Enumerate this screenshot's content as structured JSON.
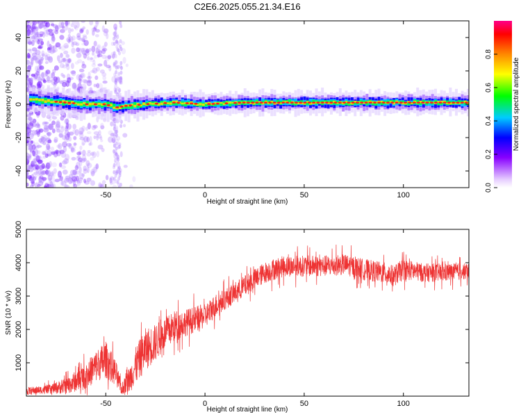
{
  "figure_title": "C2E6.2025.055.21.34.E16",
  "chart_data": [
    {
      "type": "heatmap",
      "title": "C2E6.2025.055.21.34.E16",
      "xlabel": "Height of straight line (km)",
      "ylabel": "Frequency (Hz)",
      "xlim": [
        -90,
        133
      ],
      "ylim": [
        -50,
        50
      ],
      "xticks": [
        -50,
        0,
        50,
        100
      ],
      "xtick_labels": [
        "-50",
        "0",
        "50",
        "100"
      ],
      "yticks": [
        -40,
        -20,
        0,
        20,
        40
      ],
      "ytick_labels": [
        "-40",
        "-20",
        "0",
        "20",
        "40"
      ],
      "colorbar": {
        "label": "Normalized spectral amplitude",
        "range": [
          0,
          1
        ],
        "ticks": [
          0.0,
          0.2,
          0.4,
          0.6,
          0.8
        ],
        "tick_labels": [
          "0.0",
          "0.2",
          "0.4",
          "0.6",
          "0.8"
        ]
      },
      "ridge": {
        "description_points": [
          {
            "x": -90,
            "freq": 3
          },
          {
            "x": -80,
            "freq": 2
          },
          {
            "x": -70,
            "freq": 1
          },
          {
            "x": -60,
            "freq": 0
          },
          {
            "x": -50,
            "freq": 0
          },
          {
            "x": -45,
            "freq": -2
          },
          {
            "x": -40,
            "freq": -1
          },
          {
            "x": -30,
            "freq": 0
          },
          {
            "x": -15,
            "freq": 1
          },
          {
            "x": 0,
            "freq": 0
          },
          {
            "x": 20,
            "freq": 1
          },
          {
            "x": 35,
            "freq": 1
          },
          {
            "x": 60,
            "freq": 1
          },
          {
            "x": 80,
            "freq": 1
          },
          {
            "x": 100,
            "freq": 1
          },
          {
            "x": 133,
            "freq": 1
          }
        ]
      },
      "grid": false
    },
    {
      "type": "line",
      "xlabel": "Height of straight line (km)",
      "ylabel": "SNR (10 * v/v)",
      "xlim": [
        -90,
        133
      ],
      "ylim": [
        0,
        5000
      ],
      "xticks": [
        -50,
        0,
        50,
        100
      ],
      "xtick_labels": [
        "-50",
        "0",
        "50",
        "100"
      ],
      "yticks": [
        1000,
        2000,
        3000,
        4000,
        5000
      ],
      "ytick_labels": [
        "1000",
        "2000",
        "3000",
        "4000",
        "5000"
      ],
      "color": "#ee3333",
      "series": [
        {
          "x": [
            -90,
            -80,
            -70,
            -60,
            -55,
            -50,
            -45,
            -42,
            -38,
            -35,
            -30,
            -25,
            -20,
            -15,
            -10,
            -5,
            0,
            5,
            10,
            15,
            20,
            25,
            30,
            35,
            40,
            45,
            50,
            60,
            70,
            80,
            90,
            95,
            100,
            110,
            120,
            133
          ],
          "values": [
            150,
            200,
            300,
            600,
            900,
            1100,
            700,
            200,
            500,
            900,
            1400,
            1600,
            1900,
            2100,
            2200,
            2300,
            2400,
            2700,
            2900,
            3100,
            3300,
            3500,
            3700,
            3800,
            3900,
            3900,
            3900,
            3900,
            3950,
            3800,
            3700,
            3600,
            3800,
            3700,
            3700,
            3750
          ],
          "spread": [
            150,
            150,
            300,
            500,
            600,
            700,
            500,
            200,
            500,
            700,
            800,
            700,
            600,
            600,
            500,
            500,
            450,
            450,
            400,
            400,
            400,
            400,
            400,
            400,
            400,
            400,
            400,
            400,
            400,
            400,
            400,
            400,
            400,
            350,
            350,
            300
          ]
        }
      ],
      "grid": false
    }
  ]
}
